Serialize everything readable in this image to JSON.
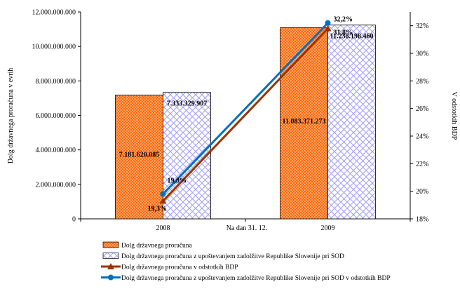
{
  "chart_data": {
    "type": "bar",
    "xlabel": "Na dan 31. 12.",
    "ylabel_left": "Dolg državnega proračuna v evrih",
    "ylabel_right": "V odstotkih BDP",
    "categories": [
      "2008",
      "2009"
    ],
    "left_axis": {
      "min": 0,
      "max": 12000000000,
      "step": 2000000000,
      "tick_labels": [
        "0",
        "2.000.000.000",
        "4.000.000.000",
        "6.000.000.000",
        "8.000.000.000",
        "10.000.000.000",
        "12.000.000.000"
      ]
    },
    "right_axis": {
      "min": 18,
      "max": 33,
      "ticks": [
        18,
        20,
        22,
        24,
        26,
        28,
        30,
        32
      ],
      "tick_labels": [
        "18%",
        "20%",
        "22%",
        "24%",
        "26%",
        "28%",
        "30%",
        "32%"
      ]
    },
    "bar_series": [
      {
        "name": "Dolg državnega proračuna",
        "values": [
          7181620085,
          11083371273
        ],
        "labels": [
          "7.181.620.085",
          "11.083.371.273"
        ],
        "color": "#ff6600",
        "pattern": "dots"
      },
      {
        "name": "Dolg državnega proračuna z upoštevanjem zadolžitve Republike Slovenije pri SOD",
        "values": [
          7333329907,
          11238198460
        ],
        "labels": [
          "7.333.329.907",
          "11.238.198.460"
        ],
        "color": "#9999ff",
        "pattern": "lattice"
      }
    ],
    "line_series": [
      {
        "name": "Dolg državnega proračuna v odstotkih BDP",
        "values": [
          19.3,
          31.8
        ],
        "labels": [
          "19,3%",
          "31,8%"
        ],
        "color": "#993300",
        "marker": "triangle"
      },
      {
        "name": "Dolg državnega proračuna z upoštevanjem zadolžitve Republike Slovenije pri SOD v odstotkih BDP",
        "values": [
          19.8,
          32.2
        ],
        "labels": [
          "19,8%",
          "32,2%"
        ],
        "color": "#0070c0",
        "marker": "circle"
      }
    ],
    "legend_position": "bottom"
  }
}
